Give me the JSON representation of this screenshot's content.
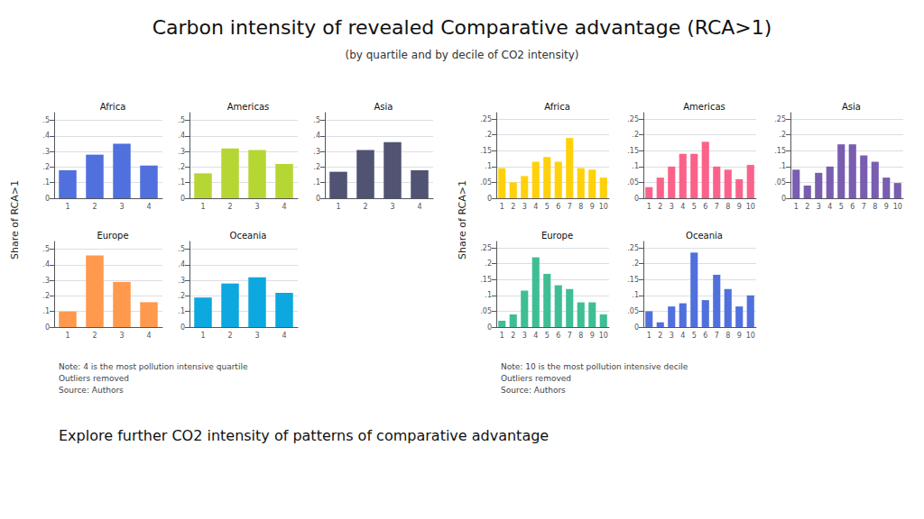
{
  "title": "Carbon intensity of revealed Comparative advantage (RCA>1)",
  "subtitle": "(by quartile and by decile of CO2 intensity)",
  "ylabel": "Share of RCA>1",
  "annotations": [
    "Note: 4 is the most pollution intensive quartile\nOutliers removed\nSource: Authors",
    "Note: 10 is the most pollution intensive decile\nOutliers removed\nSource: Authors",
    "Explore further CO2 intensity of patterns of comparative advantage"
  ],
  "chart_data": [
    {
      "type": "bar",
      "title": "Africa",
      "categories": [
        "1",
        "2",
        "3",
        "4"
      ],
      "values": [
        0.18,
        0.28,
        0.35,
        0.21
      ],
      "ylim": [
        0,
        0.55
      ],
      "yticks": [
        0,
        {
          "value": 0.1,
          "label": ".1"
        },
        {
          "value": 0.2,
          "label": ".2"
        },
        {
          "value": 0.3,
          "label": ".3"
        },
        {
          "value": 0.4,
          "label": ".4"
        },
        {
          "value": 0.5,
          "label": ".5"
        }
      ],
      "grid": true
    },
    {
      "type": "bar",
      "title": "Americas",
      "categories": [
        "1",
        "2",
        "3",
        "4"
      ],
      "values": [
        0.16,
        0.32,
        0.31,
        0.22
      ],
      "ylim": [
        0,
        0.55
      ],
      "yticks": [
        0,
        {
          "value": 0.1,
          "label": ".1"
        },
        {
          "value": 0.2,
          "label": ".2"
        },
        {
          "value": 0.3,
          "label": ".3"
        },
        {
          "value": 0.4,
          "label": ".4"
        },
        {
          "value": 0.5,
          "label": ".5"
        }
      ],
      "grid": true
    },
    {
      "type": "bar",
      "title": "Asia",
      "categories": [
        "1",
        "2",
        "3",
        "4"
      ],
      "values": [
        0.17,
        0.31,
        0.36,
        0.18
      ],
      "ylim": [
        0,
        0.55
      ],
      "yticks": [
        0,
        {
          "value": 0.1,
          "label": ".1"
        },
        {
          "value": 0.2,
          "label": ".2"
        },
        {
          "value": 0.3,
          "label": ".3"
        },
        {
          "value": 0.4,
          "label": ".4"
        },
        {
          "value": 0.5,
          "label": ".5"
        }
      ],
      "grid": true
    },
    {
      "type": "bar",
      "title": "Europe",
      "categories": [
        "1",
        "2",
        "3",
        "4"
      ],
      "values": [
        0.1,
        0.46,
        0.29,
        0.16
      ],
      "ylim": [
        0,
        0.55
      ],
      "yticks": [
        0,
        {
          "value": 0.1,
          "label": ".1"
        },
        {
          "value": 0.2,
          "label": ".2"
        },
        {
          "value": 0.3,
          "label": ".3"
        },
        {
          "value": 0.4,
          "label": ".4"
        },
        {
          "value": 0.5,
          "label": ".5"
        }
      ],
      "grid": true
    },
    {
      "type": "bar",
      "title": "Oceania",
      "categories": [
        "1",
        "2",
        "3",
        "4"
      ],
      "values": [
        0.19,
        0.28,
        0.32,
        0.22
      ],
      "ylim": [
        0,
        0.55
      ],
      "yticks": [
        0,
        {
          "value": 0.1,
          "label": ".1"
        },
        {
          "value": 0.2,
          "label": ".2"
        },
        {
          "value": 0.3,
          "label": ".3"
        },
        {
          "value": 0.4,
          "label": ".4"
        },
        {
          "value": 0.5,
          "label": ".5"
        }
      ],
      "grid": true
    },
    {
      "type": "bar",
      "title": "Africa",
      "categories": [
        "1",
        "2",
        "3",
        "4",
        "5",
        "6",
        "7",
        "8",
        "9",
        "10"
      ],
      "values": [
        0.095,
        0.05,
        0.07,
        0.115,
        0.13,
        0.115,
        0.19,
        0.095,
        0.09,
        0.065
      ],
      "ylim": [
        0,
        0.27
      ],
      "yticks": [
        0,
        {
          "value": 0.05,
          "label": ".05"
        },
        {
          "value": 0.1,
          "label": ".1"
        },
        {
          "value": 0.15,
          "label": ".15"
        },
        {
          "value": 0.2,
          "label": ".2"
        },
        {
          "value": 0.25,
          "label": ".25"
        }
      ],
      "grid": true
    },
    {
      "type": "bar",
      "title": "Americas",
      "categories": [
        "1",
        "2",
        "3",
        "4",
        "5",
        "6",
        "7",
        "8",
        "9",
        "10"
      ],
      "values": [
        0.035,
        0.065,
        0.1,
        0.14,
        0.14,
        0.178,
        0.1,
        0.09,
        0.06,
        0.105
      ],
      "ylim": [
        0,
        0.27
      ],
      "yticks": [
        0,
        {
          "value": 0.05,
          "label": ".05"
        },
        {
          "value": 0.1,
          "label": ".1"
        },
        {
          "value": 0.15,
          "label": ".15"
        },
        {
          "value": 0.2,
          "label": ".2"
        },
        {
          "value": 0.25,
          "label": ".25"
        }
      ],
      "grid": true
    },
    {
      "type": "bar",
      "title": "Asia",
      "categories": [
        "1",
        "2",
        "3",
        "4",
        "5",
        "6",
        "7",
        "8",
        "9",
        "10"
      ],
      "values": [
        0.09,
        0.04,
        0.08,
        0.1,
        0.17,
        0.17,
        0.135,
        0.115,
        0.065,
        0.048
      ],
      "ylim": [
        0,
        0.27
      ],
      "yticks": [
        0,
        {
          "value": 0.05,
          "label": ".05"
        },
        {
          "value": 0.1,
          "label": ".1"
        },
        {
          "value": 0.15,
          "label": ".15"
        },
        {
          "value": 0.2,
          "label": ".2"
        },
        {
          "value": 0.25,
          "label": ".25"
        }
      ],
      "grid": true
    },
    {
      "type": "bar",
      "title": "Europe",
      "categories": [
        "1",
        "2",
        "3",
        "4",
        "5",
        "6",
        "7",
        "8",
        "9",
        "10"
      ],
      "values": [
        0.02,
        0.04,
        0.115,
        0.22,
        0.168,
        0.132,
        0.12,
        0.078,
        0.078,
        0.04
      ],
      "ylim": [
        0,
        0.27
      ],
      "yticks": [
        0,
        {
          "value": 0.05,
          "label": ".05"
        },
        {
          "value": 0.1,
          "label": ".1"
        },
        {
          "value": 0.15,
          "label": ".15"
        },
        {
          "value": 0.2,
          "label": ".2"
        },
        {
          "value": 0.25,
          "label": ".25"
        }
      ],
      "grid": true
    },
    {
      "type": "bar",
      "title": "Oceania",
      "categories": [
        "1",
        "2",
        "3",
        "4",
        "5",
        "6",
        "7",
        "8",
        "9",
        "10"
      ],
      "values": [
        0.05,
        0.015,
        0.065,
        0.075,
        0.235,
        0.085,
        0.165,
        0.12,
        0.065,
        0.1
      ],
      "ylim": [
        0,
        0.27
      ],
      "yticks": [
        0,
        {
          "value": 0.05,
          "label": ".05"
        },
        {
          "value": 0.1,
          "label": ".1"
        },
        {
          "value": 0.15,
          "label": ".15"
        },
        {
          "value": 0.2,
          "label": ".2"
        },
        {
          "value": 0.25,
          "label": ".25"
        }
      ],
      "grid": true
    }
  ]
}
